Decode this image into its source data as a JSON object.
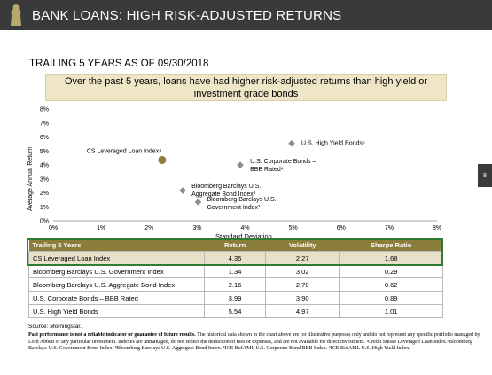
{
  "header": {
    "title": "BANK LOANS: HIGH RISK-ADJUSTED RETURNS"
  },
  "subtitle": "TRAILING 5 YEARS AS OF 09/30/2018",
  "callout": "Over the past 5 years, loans have had higher risk-adjusted returns than high yield or investment grade bonds",
  "page_number": "8",
  "chart_data": {
    "type": "scatter",
    "xlabel": "Standard Deviation",
    "ylabel": "Average Annual Return",
    "xlim": [
      0,
      8
    ],
    "ylim": [
      0,
      8
    ],
    "x_ticks": [
      "0%",
      "1%",
      "2%",
      "3%",
      "4%",
      "5%",
      "6%",
      "7%",
      "8%"
    ],
    "y_ticks": [
      "0%",
      "1%",
      "2%",
      "3%",
      "4%",
      "5%",
      "6%",
      "7%",
      "8%"
    ],
    "grid": false,
    "points": [
      {
        "label": [
          "CS Leveraged Loan Index⁴"
        ],
        "x": 2.27,
        "y": 4.35,
        "marker": "circle",
        "color": "#8b7d3a"
      },
      {
        "label": [
          "Bloomberg Barclays U.S.",
          "Government Index²"
        ],
        "x": 3.02,
        "y": 1.34,
        "marker": "diamond",
        "color": "#8c8c8c"
      },
      {
        "label": [
          "Bloomberg Barclays U.S.",
          "Aggregate Bond Index³"
        ],
        "x": 2.7,
        "y": 2.16,
        "marker": "diamond",
        "color": "#8c8c8c"
      },
      {
        "label": [
          "U.S. Corporate Bonds –",
          "BBB Rated⁴"
        ],
        "x": 3.9,
        "y": 3.99,
        "marker": "diamond",
        "color": "#8c8c8c"
      },
      {
        "label": [
          "U.S. High Yield Bonds⁵"
        ],
        "x": 4.97,
        "y": 5.54,
        "marker": "diamond",
        "color": "#8c8c8c"
      }
    ]
  },
  "table": {
    "headers": [
      "Trailing 5 Years",
      "Return",
      "Volatility",
      "Sharpe Ratio"
    ],
    "rows": [
      [
        "CS Leveraged Loan Index",
        "4.35",
        "2.27",
        "1.68"
      ],
      [
        "Bloomberg Barclays U.S. Government Index",
        "1.34",
        "3.02",
        "0.29"
      ],
      [
        "Bloomberg Barclays U.S. Aggregate Bond Index",
        "2.16",
        "2.70",
        "0.62"
      ],
      [
        "U.S. Corporate Bonds – BBB Rated",
        "3.99",
        "3.90",
        "0.89"
      ],
      [
        "U.S. High Yield Bonds",
        "5.54",
        "4.97",
        "1.01"
      ]
    ]
  },
  "source": "Source: Morningstar.",
  "disclaimer_bold": "Past performance is not a reliable indicator or guarantee of future results.",
  "disclaimer_text": " The historical data shown in the chart above are for illustrative purposes only and do not represent any specific portfolio managed by Lord Abbett or any particular investment. Indexes are unmanaged, do not reflect the deduction of fees or expenses, and are not available for direct investment. ¹Credit Suisse Leveraged Loan Index.²Bloomberg Barclays U.S. Government Bond Index. ³Bloomberg Barclays U.S. Aggregate Bond Index. ⁴ICE BofAML U.S. Corporate Bond BBB Index. ⁵ICE BofAML U.S. High Yield Index.",
  "colors": {
    "header_bg": "#3a3a3a",
    "accent_gold": "#8b7d3a",
    "callout_bg": "#efe6c8",
    "table_highlight": "#e7e1c9",
    "highlight_border": "#2f7d32"
  }
}
